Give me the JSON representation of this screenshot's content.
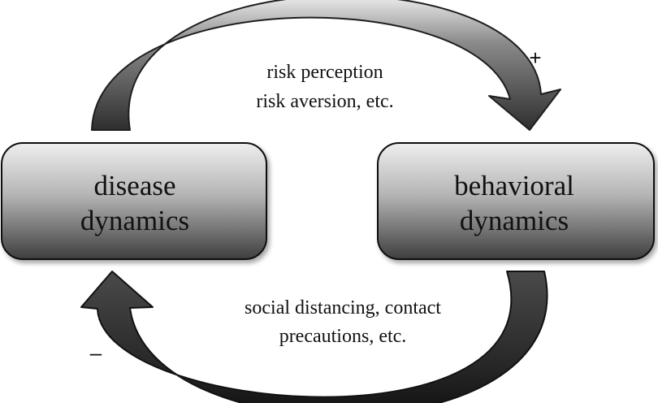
{
  "nodes": {
    "disease": {
      "line1": "disease",
      "line2": "dynamics"
    },
    "behavioral": {
      "line1": "behavioral",
      "line2": "dynamics"
    }
  },
  "edges": {
    "top": {
      "line1": "risk perception",
      "line2": "risk aversion, etc.",
      "sign": "+"
    },
    "bottom": {
      "line1": "social distancing, contact",
      "line2": "precautions, etc.",
      "sign": "–"
    }
  }
}
